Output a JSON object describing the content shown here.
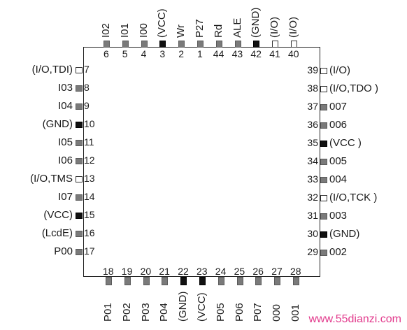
{
  "watermark": "www.55dianzi.com",
  "pin_colors": {
    "grey": "#7a7a7a",
    "black": "#111111",
    "open": "#ffffff"
  },
  "left_pins": [
    {
      "num": "7",
      "label": "(I/O,TDI)",
      "type": "open"
    },
    {
      "num": "8",
      "label": "I03",
      "type": "grey"
    },
    {
      "num": "9",
      "label": "I04",
      "type": "grey"
    },
    {
      "num": "10",
      "label": "(GND)",
      "type": "black"
    },
    {
      "num": "11",
      "label": "I05",
      "type": "grey"
    },
    {
      "num": "12",
      "label": "I06",
      "type": "grey"
    },
    {
      "num": "13",
      "label": "(I/O,TMS",
      "type": "open"
    },
    {
      "num": "14",
      "label": "I07",
      "type": "grey"
    },
    {
      "num": "15",
      "label": "(VCC)",
      "type": "black"
    },
    {
      "num": "16",
      "label": "(LcdE)",
      "type": "grey"
    },
    {
      "num": "17",
      "label": "P00",
      "type": "grey"
    }
  ],
  "right_pins": [
    {
      "num": "39",
      "label": "(I/O)",
      "type": "open"
    },
    {
      "num": "38",
      "label": "(I/O,TDO )",
      "type": "open"
    },
    {
      "num": "37",
      "label": "007",
      "type": "grey"
    },
    {
      "num": "36",
      "label": "006",
      "type": "grey"
    },
    {
      "num": "35",
      "label": "(VCC )",
      "type": "black"
    },
    {
      "num": "34",
      "label": "005",
      "type": "grey"
    },
    {
      "num": "33",
      "label": "004",
      "type": "grey"
    },
    {
      "num": "32",
      "label": "(I/O,TCK )",
      "type": "open"
    },
    {
      "num": "31",
      "label": "003",
      "type": "grey"
    },
    {
      "num": "30",
      "label": "(GND)",
      "type": "black"
    },
    {
      "num": "29",
      "label": "002",
      "type": "grey"
    }
  ],
  "top_pins": [
    {
      "num": "6",
      "label": "I02",
      "type": "grey"
    },
    {
      "num": "5",
      "label": "I01",
      "type": "grey"
    },
    {
      "num": "4",
      "label": "I00",
      "type": "grey"
    },
    {
      "num": "3",
      "label": "(VCC)",
      "type": "black"
    },
    {
      "num": "2",
      "label": "Wr",
      "type": "grey"
    },
    {
      "num": "1",
      "label": "P27",
      "type": "grey"
    },
    {
      "num": "44",
      "label": "Rd",
      "type": "grey"
    },
    {
      "num": "43",
      "label": "ALE",
      "type": "grey"
    },
    {
      "num": "42",
      "label": "(GND)",
      "type": "black"
    },
    {
      "num": "41",
      "label": "(I/O)",
      "type": "open"
    },
    {
      "num": "40",
      "label": "(I/O)",
      "type": "open"
    }
  ],
  "bottom_pins": [
    {
      "num": "18",
      "label": "P01",
      "type": "grey"
    },
    {
      "num": "19",
      "label": "P02",
      "type": "grey"
    },
    {
      "num": "20",
      "label": "P03",
      "type": "grey"
    },
    {
      "num": "21",
      "label": "P04",
      "type": "grey"
    },
    {
      "num": "22",
      "label": "(GND)",
      "type": "black"
    },
    {
      "num": "23",
      "label": "(VCC)",
      "type": "black"
    },
    {
      "num": "24",
      "label": "P05",
      "type": "grey"
    },
    {
      "num": "25",
      "label": "P06",
      "type": "grey"
    },
    {
      "num": "26",
      "label": "P07",
      "type": "grey"
    },
    {
      "num": "27",
      "label": "000",
      "type": "grey"
    },
    {
      "num": "28",
      "label": "001",
      "type": "grey"
    }
  ]
}
